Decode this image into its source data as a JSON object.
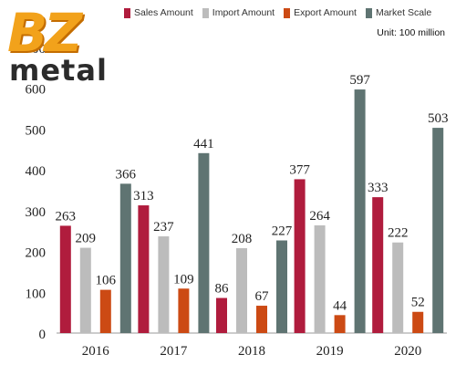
{
  "logo": {
    "top": "BZ",
    "bottom": "metal"
  },
  "unit": "Unit: 100 million",
  "colors": {
    "Sales Amount": "#b01c3d",
    "Import Amount": "#bcbcbc",
    "Export Amount": "#cc4a14",
    "Market Scale": "#5f7472"
  },
  "chart_data": {
    "type": "bar",
    "categories": [
      "2016",
      "2017",
      "2018",
      "2019",
      "2020"
    ],
    "series": [
      {
        "name": "Sales Amount",
        "values": [
          263,
          313,
          86,
          377,
          333
        ]
      },
      {
        "name": "Import Amount",
        "values": [
          209,
          237,
          208,
          264,
          222
        ]
      },
      {
        "name": "Export Amount",
        "values": [
          106,
          109,
          67,
          44,
          52
        ]
      },
      {
        "name": "Market Scale",
        "values": [
          366,
          441,
          227,
          597,
          503
        ]
      }
    ],
    "yticks": [
      0,
      100,
      200,
      300,
      400,
      500,
      600,
      700
    ],
    "ylim": [
      0,
      700
    ],
    "legend": "top",
    "grid": false
  }
}
